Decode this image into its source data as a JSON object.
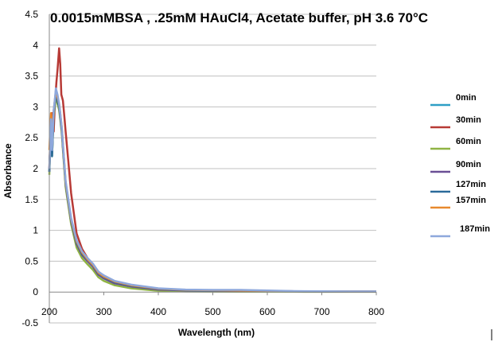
{
  "chart_data": {
    "type": "line",
    "title": "0.0015mMBSA , .25mM HAuCl4, Acetate buffer, pH 3.6 70°C",
    "xlabel": "Wavelength (nm)",
    "ylabel": "Absorbance",
    "xlim": [
      200,
      800
    ],
    "ylim": [
      -0.5,
      4.5
    ],
    "xticks": [
      "200",
      "300",
      "400",
      "500",
      "600",
      "700",
      "800"
    ],
    "yticks": [
      "-0.5",
      "0",
      "0.5",
      "1",
      "1.5",
      "2",
      "2.5",
      "3",
      "3.5",
      "4",
      "4.5"
    ],
    "grid": "horizontal",
    "legend_position": "right",
    "series": [
      {
        "name": "0min",
        "color": "#2e9fc5",
        "x": [
          200,
          203,
          205,
          208,
          210,
          212,
          215,
          218,
          220,
          223,
          225,
          230,
          240,
          250,
          260,
          270,
          280,
          290,
          300,
          320,
          350,
          400,
          450,
          500,
          550,
          600,
          650,
          700,
          750,
          800
        ],
        "y": [
          1.95,
          2.75,
          2.2,
          2.9,
          3.05,
          3.2,
          3.1,
          3.0,
          2.85,
          2.6,
          2.35,
          1.75,
          1.15,
          0.8,
          0.62,
          0.52,
          0.43,
          0.3,
          0.24,
          0.16,
          0.1,
          0.05,
          0.03,
          0.025,
          0.02,
          0.015,
          0.01,
          0.01,
          0.008,
          0.008
        ]
      },
      {
        "name": "30min",
        "color": "#b73a36",
        "x": [
          200,
          203,
          205,
          208,
          210,
          213,
          215,
          218,
          220,
          222,
          225,
          228,
          230,
          235,
          240,
          250,
          260,
          270,
          280,
          290,
          300,
          320,
          350,
          400,
          450,
          500,
          550,
          600,
          650,
          700,
          750,
          800
        ],
        "y": [
          2.0,
          2.8,
          2.9,
          2.6,
          3.0,
          3.4,
          3.6,
          3.95,
          3.7,
          3.2,
          3.1,
          2.8,
          2.6,
          2.1,
          1.6,
          0.95,
          0.7,
          0.55,
          0.45,
          0.33,
          0.26,
          0.17,
          0.1,
          0.05,
          0.03,
          0.025,
          0.02,
          0.015,
          0.012,
          0.01,
          0.01,
          0.012
        ]
      },
      {
        "name": "60min",
        "color": "#8fb444",
        "x": [
          200,
          203,
          205,
          208,
          210,
          212,
          215,
          218,
          220,
          223,
          225,
          230,
          240,
          250,
          260,
          270,
          280,
          290,
          300,
          320,
          350,
          400,
          450,
          500,
          550,
          600,
          650,
          700,
          750,
          800
        ],
        "y": [
          1.9,
          2.7,
          2.2,
          2.85,
          3.0,
          3.15,
          3.05,
          2.95,
          2.8,
          2.55,
          2.3,
          1.7,
          1.1,
          0.72,
          0.55,
          0.45,
          0.36,
          0.24,
          0.18,
          0.11,
          0.06,
          0.02,
          0.01,
          0.008,
          0.006,
          0.005,
          0.005,
          0.004,
          0.004,
          0.004
        ]
      },
      {
        "name": "90min",
        "color": "#6a4f95",
        "x": [
          200,
          203,
          205,
          208,
          210,
          212,
          215,
          218,
          220,
          223,
          225,
          230,
          240,
          250,
          260,
          270,
          280,
          290,
          300,
          320,
          350,
          400,
          450,
          500,
          550,
          600,
          650,
          700,
          750,
          800
        ],
        "y": [
          1.95,
          2.75,
          2.25,
          2.9,
          3.05,
          3.2,
          3.1,
          3.0,
          2.85,
          2.6,
          2.35,
          1.75,
          1.15,
          0.78,
          0.6,
          0.5,
          0.41,
          0.28,
          0.22,
          0.14,
          0.09,
          0.04,
          0.025,
          0.02,
          0.018,
          0.014,
          0.01,
          0.009,
          0.008,
          0.008
        ]
      },
      {
        "name": "127min",
        "color": "#2b6a9a",
        "x": [
          200,
          203,
          205,
          208,
          210,
          212,
          215,
          218,
          220,
          223,
          225,
          230,
          240,
          250,
          260,
          270,
          280,
          290,
          300,
          320,
          350,
          400,
          450,
          500,
          550,
          600,
          650,
          700,
          750,
          800
        ],
        "y": [
          1.95,
          2.75,
          2.2,
          2.9,
          3.05,
          3.2,
          3.1,
          3.0,
          2.85,
          2.6,
          2.35,
          1.76,
          1.16,
          0.8,
          0.62,
          0.52,
          0.43,
          0.3,
          0.24,
          0.16,
          0.1,
          0.05,
          0.03,
          0.026,
          0.022,
          0.016,
          0.011,
          0.01,
          0.009,
          0.009
        ]
      },
      {
        "name": "157min",
        "color": "#e8892e",
        "x": [
          200,
          203,
          205,
          208,
          210,
          212,
          215,
          218,
          220,
          223,
          225,
          230,
          240,
          250,
          260,
          270,
          280,
          290,
          300,
          320,
          350,
          400,
          450,
          500,
          550,
          600,
          650,
          700,
          750,
          800
        ],
        "y": [
          2.3,
          2.9,
          2.4,
          2.95,
          3.1,
          3.25,
          3.15,
          3.05,
          2.9,
          2.65,
          2.4,
          1.78,
          1.18,
          0.82,
          0.64,
          0.53,
          0.44,
          0.31,
          0.25,
          0.17,
          0.11,
          0.055,
          0.035,
          0.03,
          0.025,
          0.018,
          0.012,
          0.011,
          0.01,
          0.01
        ]
      },
      {
        "name": "187min",
        "color": "#8ea8dc",
        "x": [
          200,
          203,
          205,
          208,
          210,
          212,
          215,
          218,
          220,
          223,
          225,
          230,
          240,
          250,
          260,
          270,
          280,
          290,
          300,
          320,
          350,
          400,
          450,
          500,
          550,
          600,
          650,
          700,
          750,
          800
        ],
        "y": [
          2.0,
          2.8,
          2.3,
          2.95,
          3.1,
          3.3,
          3.2,
          3.05,
          2.9,
          2.65,
          2.4,
          1.8,
          1.2,
          0.84,
          0.66,
          0.55,
          0.46,
          0.33,
          0.27,
          0.18,
          0.12,
          0.06,
          0.04,
          0.035,
          0.035,
          0.025,
          0.015,
          0.012,
          0.01,
          0.01
        ]
      }
    ]
  }
}
